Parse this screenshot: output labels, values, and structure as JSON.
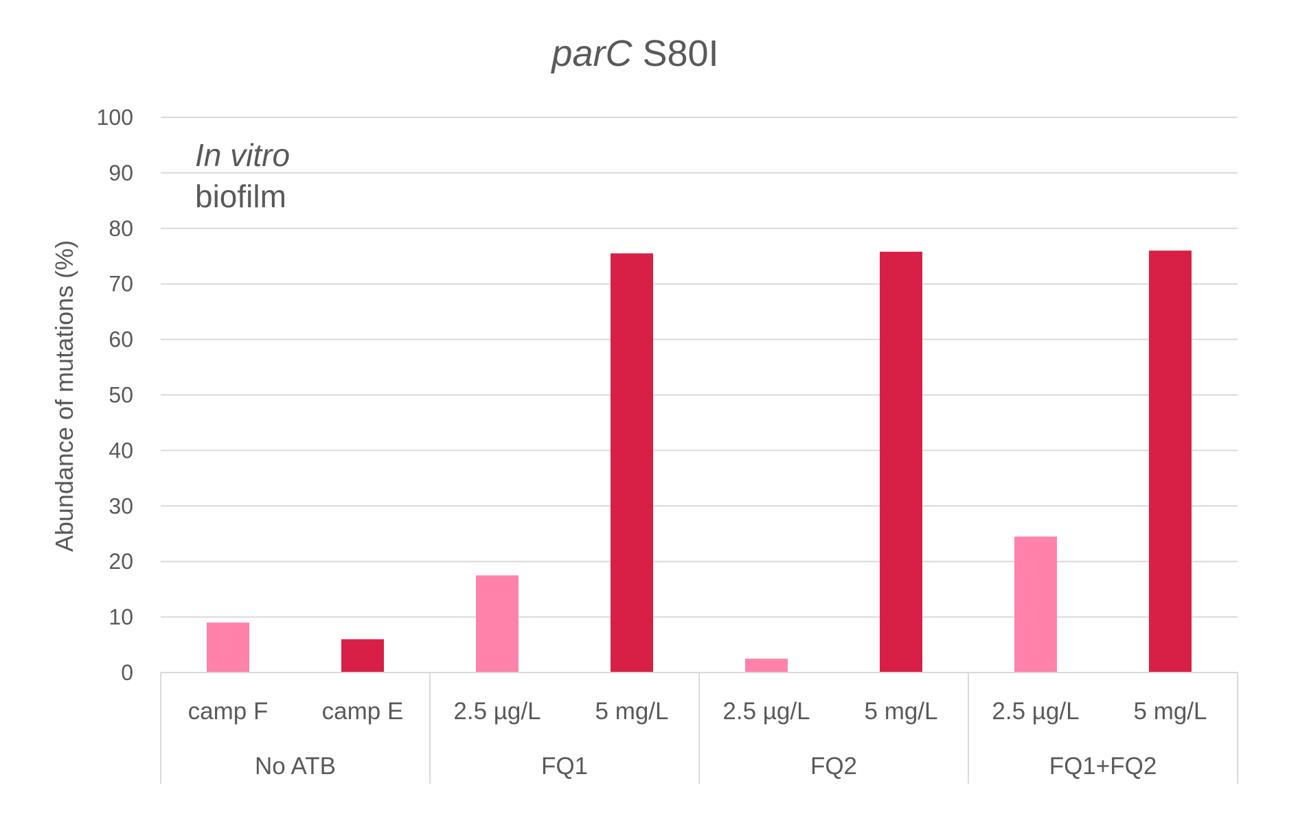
{
  "chart_data": {
    "type": "bar",
    "title_italic": "parC",
    "title_rest": " S80I",
    "ylabel": "Abundance of mutations (%)",
    "ylim": [
      0,
      100
    ],
    "yticks": [
      "0",
      "10",
      "20",
      "30",
      "40",
      "50",
      "60",
      "70",
      "80",
      "90",
      "100"
    ],
    "grid": true,
    "annotation_line1": "In vitro",
    "annotation_line2": "biofilm",
    "categories": [
      "camp F",
      "camp E",
      "2.5 µg/L",
      "5 mg/L",
      "2.5 µg/L",
      "5 mg/L",
      "2.5 µg/L",
      "5 mg/L"
    ],
    "groups": [
      "No ATB",
      "FQ1",
      "FQ2",
      "FQ1+FQ2"
    ],
    "values": [
      9.0,
      6.0,
      17.5,
      75.5,
      2.5,
      75.8,
      24.5,
      76.0
    ],
    "colors": [
      "#ff82aa",
      "#d82046",
      "#ff82aa",
      "#d82046",
      "#ff82aa",
      "#d82046",
      "#ff82aa",
      "#d82046"
    ]
  }
}
